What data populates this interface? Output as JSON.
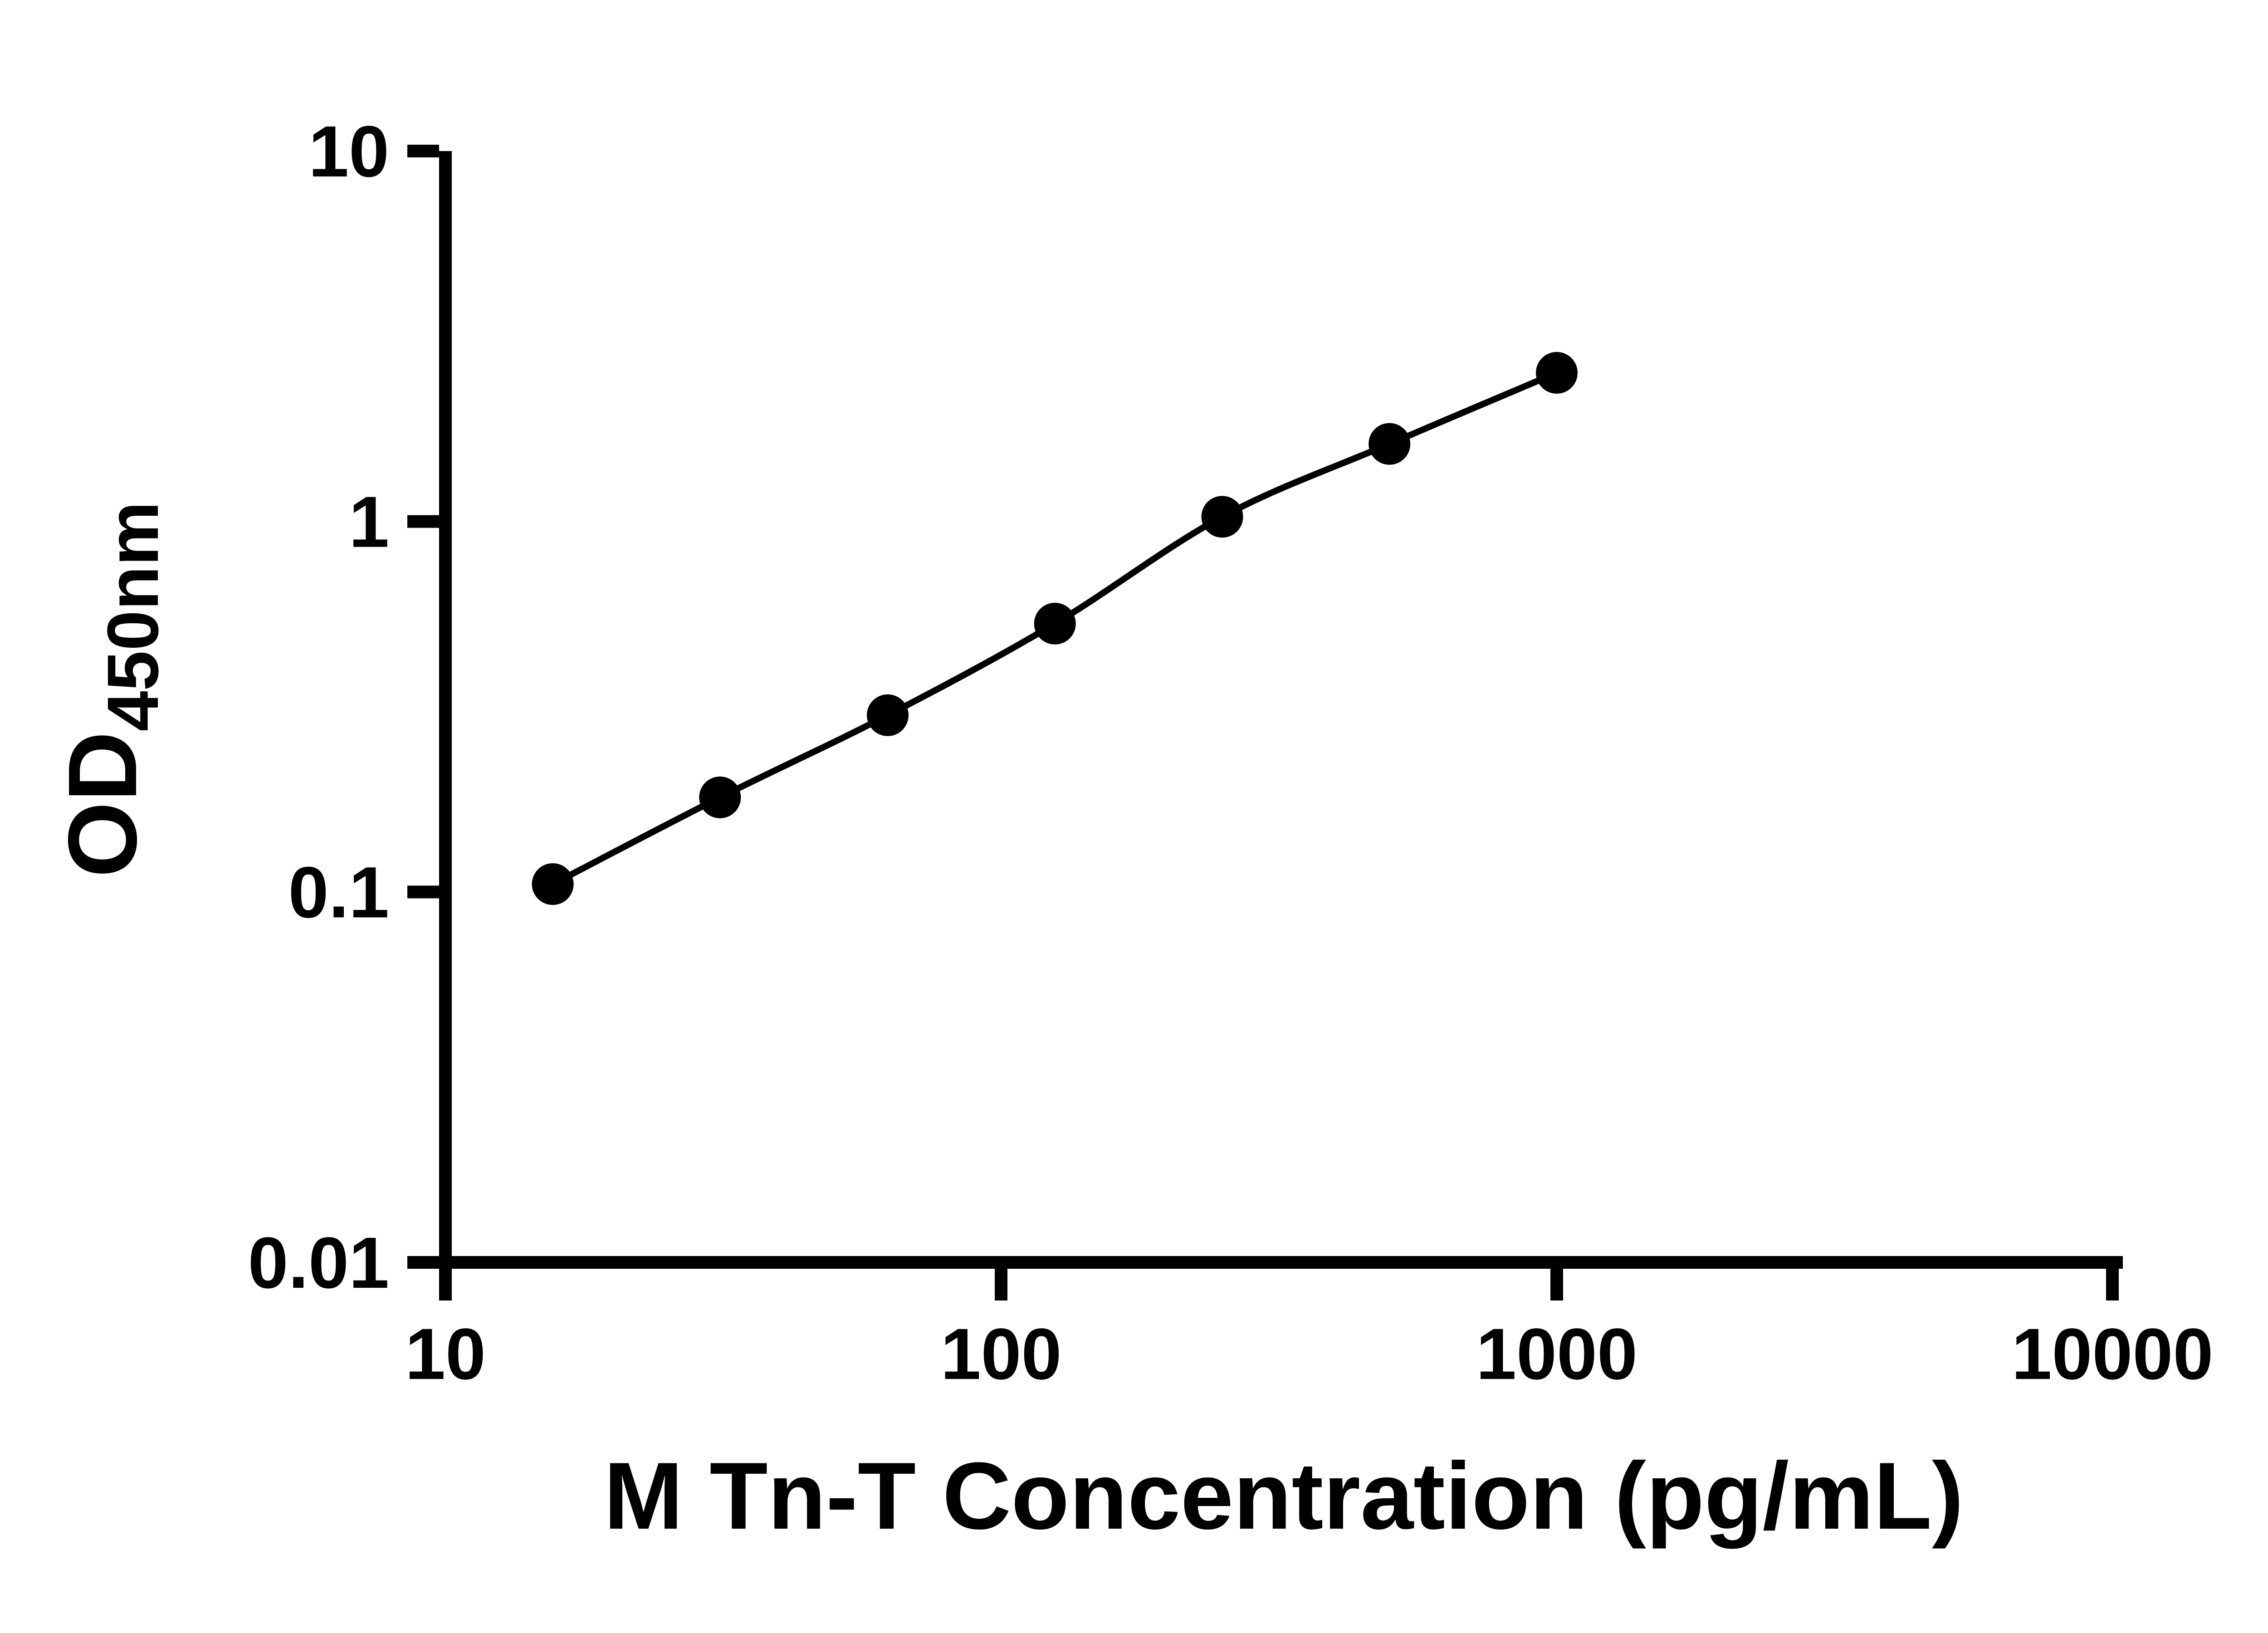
{
  "figure": {
    "background_color": "#ffffff",
    "axis_color": "#000000"
  },
  "chart_data": {
    "type": "scatter",
    "title": "",
    "xlabel": "M Tn-T Concentration (pg/mL)",
    "ylabel": "OD450nm",
    "ylabel_main": "OD",
    "ylabel_sub": "450nm",
    "x_scale": "log10",
    "y_scale": "log10",
    "xlim": [
      10,
      10000
    ],
    "ylim": [
      0.01,
      10
    ],
    "x_ticks": [
      10,
      100,
      1000,
      10000
    ],
    "x_tick_labels": [
      "10",
      "100",
      "1000",
      "10000"
    ],
    "y_ticks": [
      0.01,
      0.1,
      1,
      10
    ],
    "y_tick_labels": [
      "0.01",
      "0.1",
      "1",
      "10"
    ],
    "grid": false,
    "legend": false,
    "series": [
      {
        "x": [
          15.6,
          31.2,
          62.5,
          125,
          250,
          500,
          1000
        ],
        "y": [
          0.105,
          0.18,
          0.3,
          0.53,
          1.03,
          1.62,
          2.52
        ],
        "marker": "circle",
        "marker_color": "#000000",
        "line_color": "#000000"
      }
    ]
  }
}
